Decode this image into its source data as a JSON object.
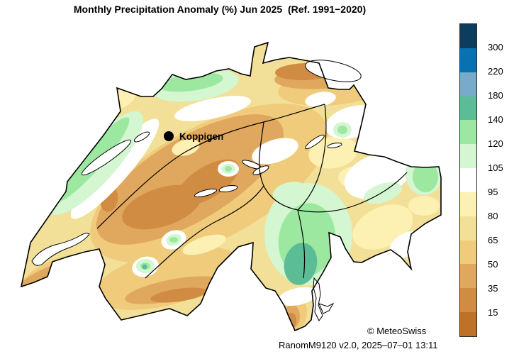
{
  "title": "Monthly Precipitation Anomaly (%) Jun 2025  (Ref. 1991−2020)",
  "map": {
    "country": "Switzerland",
    "marker": {
      "label": "Koppigen"
    },
    "copyright": "© MeteoSwiss"
  },
  "footer": {
    "version_line": "RanomM9120 v2.0, 2025–07–01 13:11"
  },
  "colorbar": {
    "unit": "%",
    "tick_labels": [
      "300",
      "220",
      "180",
      "140",
      "120",
      "105",
      "95",
      "80",
      "65",
      "50",
      "35",
      "15"
    ],
    "segment_colors_top_to_bottom": [
      "#0c3d5e",
      "#0971b2",
      "#78aacc",
      "#5abd96",
      "#9de8a1",
      "#d4f6d0",
      "#ffffff",
      "#fdf0b3",
      "#f2e098",
      "#efcb7b",
      "#e0a85e",
      "#d18c43",
      "#bd7228"
    ],
    "border_color": "#2a2a2a"
  }
}
